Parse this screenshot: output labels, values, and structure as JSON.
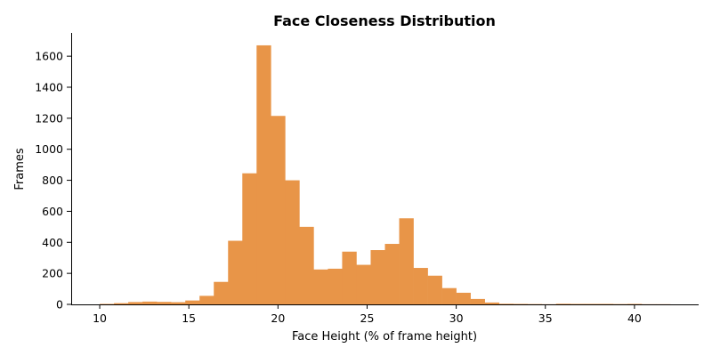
{
  "chart_data": {
    "type": "bar",
    "subtype": "histogram",
    "title": "Face Closeness Distribution",
    "xlabel": "Face Height (% of frame height)",
    "ylabel": "Frames",
    "xlim": [
      8.4,
      43.6
    ],
    "ylim": [
      0,
      1750
    ],
    "x_ticks": [
      10,
      15,
      20,
      25,
      30,
      35,
      40
    ],
    "y_ticks": [
      0,
      200,
      400,
      600,
      800,
      1000,
      1200,
      1400,
      1600
    ],
    "bar_color": "#e89548",
    "bin_start": 10,
    "bin_width": 0.8,
    "values": [
      3,
      8,
      15,
      18,
      16,
      14,
      25,
      55,
      145,
      410,
      845,
      1670,
      1215,
      800,
      500,
      225,
      230,
      340,
      255,
      350,
      390,
      555,
      235,
      185,
      105,
      75,
      35,
      12,
      4,
      3,
      2,
      1,
      4,
      3,
      3,
      3,
      2,
      3,
      1,
      1
    ],
    "grid": false,
    "spines": "left-bottom"
  }
}
